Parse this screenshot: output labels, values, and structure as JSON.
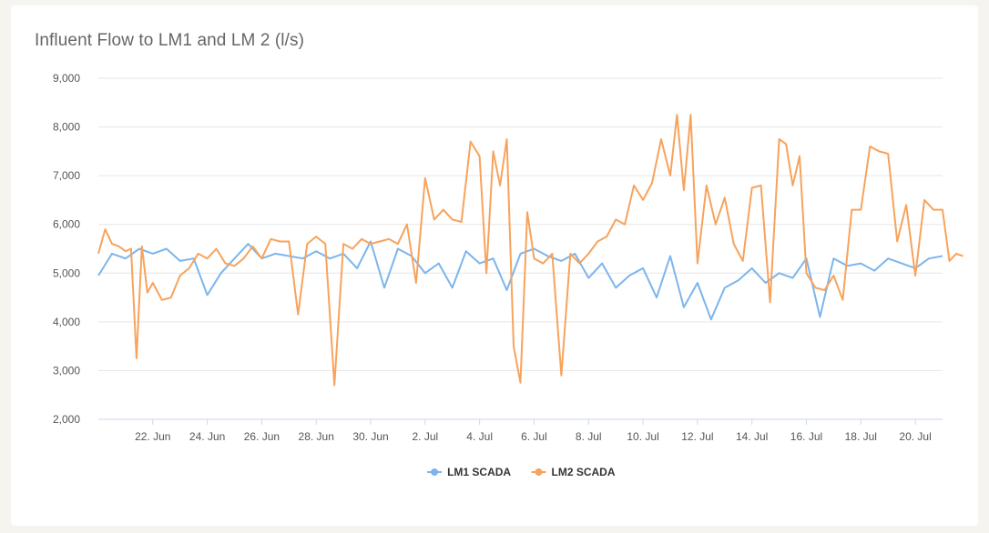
{
  "chart_data": {
    "type": "line",
    "title": "Influent Flow to LM1 and LM 2 (l/s)",
    "xlabel": "",
    "ylabel": "",
    "ylim": [
      2000,
      9000
    ],
    "yticks": [
      2000,
      3000,
      4000,
      5000,
      6000,
      7000,
      8000,
      9000
    ],
    "ytick_labels": [
      "2,000",
      "3,000",
      "4,000",
      "5,000",
      "6,000",
      "7,000",
      "8,000",
      "9,000"
    ],
    "xlim": [
      "2021-06-20",
      "2021-07-21"
    ],
    "xticks": [
      "2021-06-22",
      "2021-06-24",
      "2021-06-26",
      "2021-06-28",
      "2021-06-30",
      "2021-07-02",
      "2021-07-04",
      "2021-07-06",
      "2021-07-08",
      "2021-07-10",
      "2021-07-12",
      "2021-07-14",
      "2021-07-16",
      "2021-07-18",
      "2021-07-20"
    ],
    "xtick_labels": [
      "22. Jun",
      "24. Jun",
      "26. Jun",
      "28. Jun",
      "30. Jun",
      "2. Jul",
      "4. Jul",
      "6. Jul",
      "8. Jul",
      "10. Jul",
      "12. Jul",
      "14. Jul",
      "16. Jul",
      "18. Jul",
      "20. Jul"
    ],
    "grid": true,
    "legend": "bottom-center",
    "series": [
      {
        "name": "LM1 SCADA",
        "color": "#7cb5ec",
        "points": [
          [
            "2021-06-20",
            4950
          ],
          [
            "2021-06-20",
            5400
          ],
          [
            "2021-06-21",
            5300
          ],
          [
            "2021-06-21",
            5500
          ],
          [
            "2021-06-22",
            5400
          ],
          [
            "2021-06-22",
            5500
          ],
          [
            "2021-06-23",
            5250
          ],
          [
            "2021-06-23",
            5300
          ],
          [
            "2021-06-24",
            4550
          ],
          [
            "2021-06-24",
            5000
          ],
          [
            "2021-06-25",
            5300
          ],
          [
            "2021-06-25",
            5600
          ],
          [
            "2021-06-26",
            5300
          ],
          [
            "2021-06-26",
            5400
          ],
          [
            "2021-06-27",
            5350
          ],
          [
            "2021-06-27",
            5300
          ],
          [
            "2021-06-28",
            5450
          ],
          [
            "2021-06-28",
            5300
          ],
          [
            "2021-06-29",
            5400
          ],
          [
            "2021-06-29",
            5100
          ],
          [
            "2021-06-30",
            5650
          ],
          [
            "2021-06-30",
            4700
          ],
          [
            "2021-07-01",
            5500
          ],
          [
            "2021-07-01",
            5350
          ],
          [
            "2021-07-02",
            5000
          ],
          [
            "2021-07-02",
            5200
          ],
          [
            "2021-07-03",
            4700
          ],
          [
            "2021-07-03",
            5450
          ],
          [
            "2021-07-04",
            5200
          ],
          [
            "2021-07-04",
            5300
          ],
          [
            "2021-07-05",
            4650
          ],
          [
            "2021-07-05",
            5400
          ],
          [
            "2021-07-06",
            5500
          ],
          [
            "2021-07-06",
            5350
          ],
          [
            "2021-07-07",
            5250
          ],
          [
            "2021-07-07",
            5400
          ],
          [
            "2021-07-08",
            4900
          ],
          [
            "2021-07-08",
            5200
          ],
          [
            "2021-07-09",
            4700
          ],
          [
            "2021-07-09",
            4950
          ],
          [
            "2021-07-10",
            5100
          ],
          [
            "2021-07-10",
            4500
          ],
          [
            "2021-07-11",
            5350
          ],
          [
            "2021-07-11",
            4300
          ],
          [
            "2021-07-12",
            4800
          ],
          [
            "2021-07-12",
            4050
          ],
          [
            "2021-07-13",
            4700
          ],
          [
            "2021-07-13",
            4850
          ],
          [
            "2021-07-14",
            5100
          ],
          [
            "2021-07-14",
            4800
          ],
          [
            "2021-07-15",
            5000
          ],
          [
            "2021-07-15",
            4900
          ],
          [
            "2021-07-16",
            5300
          ],
          [
            "2021-07-16",
            4100
          ],
          [
            "2021-07-17",
            5300
          ],
          [
            "2021-07-17",
            5150
          ],
          [
            "2021-07-18",
            5200
          ],
          [
            "2021-07-18",
            5050
          ],
          [
            "2021-07-19",
            5300
          ],
          [
            "2021-07-19",
            5200
          ],
          [
            "2021-07-20",
            5100
          ],
          [
            "2021-07-20",
            5300
          ],
          [
            "2021-07-21",
            5350
          ]
        ]
      },
      {
        "name": "LM2 SCADA",
        "color": "#f7a35c",
        "points": [
          [
            "2021-06-20",
            5400
          ],
          [
            "2021-06-20",
            5900
          ],
          [
            "2021-06-20",
            5600
          ],
          [
            "2021-06-20",
            5550
          ],
          [
            "2021-06-21",
            5450
          ],
          [
            "2021-06-21",
            5500
          ],
          [
            "2021-06-21",
            3250
          ],
          [
            "2021-06-21",
            5550
          ],
          [
            "2021-06-21",
            4600
          ],
          [
            "2021-06-22",
            4800
          ],
          [
            "2021-06-22",
            4450
          ],
          [
            "2021-06-22",
            4500
          ],
          [
            "2021-06-23",
            4950
          ],
          [
            "2021-06-23",
            5100
          ],
          [
            "2021-06-23",
            5400
          ],
          [
            "2021-06-24",
            5300
          ],
          [
            "2021-06-24",
            5500
          ],
          [
            "2021-06-24",
            5200
          ],
          [
            "2021-06-25",
            5150
          ],
          [
            "2021-06-25",
            5300
          ],
          [
            "2021-06-25",
            5550
          ],
          [
            "2021-06-26",
            5300
          ],
          [
            "2021-06-26",
            5700
          ],
          [
            "2021-06-26",
            5650
          ],
          [
            "2021-06-27",
            5650
          ],
          [
            "2021-06-27",
            4150
          ],
          [
            "2021-06-27",
            5600
          ],
          [
            "2021-06-28",
            5750
          ],
          [
            "2021-06-28",
            5600
          ],
          [
            "2021-06-28",
            2700
          ],
          [
            "2021-06-29",
            5600
          ],
          [
            "2021-06-29",
            5500
          ],
          [
            "2021-06-29",
            5700
          ],
          [
            "2021-06-30",
            5600
          ],
          [
            "2021-06-30",
            5650
          ],
          [
            "2021-06-30",
            5700
          ],
          [
            "2021-07-01",
            5600
          ],
          [
            "2021-07-01",
            6000
          ],
          [
            "2021-07-01",
            4800
          ],
          [
            "2021-07-02",
            6950
          ],
          [
            "2021-07-02",
            6100
          ],
          [
            "2021-07-02",
            6300
          ],
          [
            "2021-07-03",
            6100
          ],
          [
            "2021-07-03",
            6050
          ],
          [
            "2021-07-03",
            7700
          ],
          [
            "2021-07-04",
            7400
          ],
          [
            "2021-07-04",
            5000
          ],
          [
            "2021-07-04",
            7500
          ],
          [
            "2021-07-04",
            6800
          ],
          [
            "2021-07-05",
            7750
          ],
          [
            "2021-07-05",
            3500
          ],
          [
            "2021-07-05",
            2750
          ],
          [
            "2021-07-05",
            6250
          ],
          [
            "2021-07-06",
            5300
          ],
          [
            "2021-07-06",
            5200
          ],
          [
            "2021-07-06",
            5400
          ],
          [
            "2021-07-07",
            2900
          ],
          [
            "2021-07-07",
            5400
          ],
          [
            "2021-07-07",
            5200
          ],
          [
            "2021-07-08",
            5400
          ],
          [
            "2021-07-08",
            5650
          ],
          [
            "2021-07-08",
            5750
          ],
          [
            "2021-07-09",
            6100
          ],
          [
            "2021-07-09",
            6000
          ],
          [
            "2021-07-09",
            6800
          ],
          [
            "2021-07-10",
            6500
          ],
          [
            "2021-07-10",
            6850
          ],
          [
            "2021-07-10",
            7750
          ],
          [
            "2021-07-11",
            7000
          ],
          [
            "2021-07-11",
            8250
          ],
          [
            "2021-07-11",
            6700
          ],
          [
            "2021-07-11",
            8250
          ],
          [
            "2021-07-12",
            5200
          ],
          [
            "2021-07-12",
            6800
          ],
          [
            "2021-07-12",
            6000
          ],
          [
            "2021-07-13",
            6550
          ],
          [
            "2021-07-13",
            5600
          ],
          [
            "2021-07-13",
            5250
          ],
          [
            "2021-07-14",
            6750
          ],
          [
            "2021-07-14",
            6800
          ],
          [
            "2021-07-14",
            4400
          ],
          [
            "2021-07-15",
            7750
          ],
          [
            "2021-07-15",
            7650
          ],
          [
            "2021-07-15",
            6800
          ],
          [
            "2021-07-15",
            7400
          ],
          [
            "2021-07-16",
            5000
          ],
          [
            "2021-07-16",
            4700
          ],
          [
            "2021-07-16",
            4650
          ],
          [
            "2021-07-17",
            4950
          ],
          [
            "2021-07-17",
            4450
          ],
          [
            "2021-07-17",
            6300
          ],
          [
            "2021-07-18",
            6300
          ],
          [
            "2021-07-18",
            7600
          ],
          [
            "2021-07-18",
            7500
          ],
          [
            "2021-07-19",
            7450
          ],
          [
            "2021-07-19",
            5650
          ],
          [
            "2021-07-19",
            6400
          ],
          [
            "2021-07-20",
            4950
          ],
          [
            "2021-07-20",
            6500
          ],
          [
            "2021-07-20",
            6300
          ],
          [
            "2021-07-21",
            6300
          ],
          [
            "2021-07-21",
            5250
          ],
          [
            "2021-07-21",
            5400
          ],
          [
            "2021-07-21",
            5350
          ]
        ]
      }
    ]
  }
}
